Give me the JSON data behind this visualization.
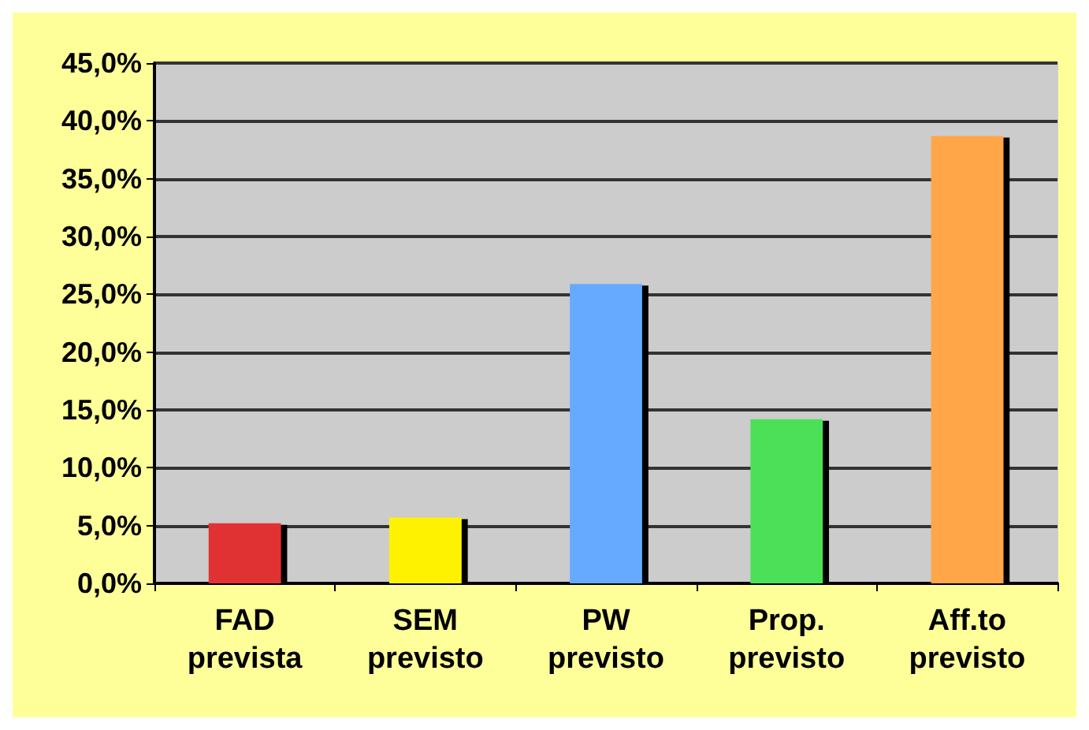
{
  "chart_data": {
    "type": "bar",
    "categories": [
      "FAD\nprevista",
      "SEM\nprevisto",
      "PW\nprevisto",
      "Prop.\nprevisto",
      "Aff.to\nprevisto"
    ],
    "values": [
      5.2,
      5.7,
      25.9,
      14.2,
      38.7
    ],
    "colors": [
      "#e03030",
      "#fff200",
      "#66aaff",
      "#4ce058",
      "#ffa64a"
    ],
    "ylim": [
      0,
      45
    ],
    "yticks": [
      {
        "value": 0,
        "label": "0,0%"
      },
      {
        "value": 5,
        "label": "5,0%"
      },
      {
        "value": 10,
        "label": "10,0%"
      },
      {
        "value": 15,
        "label": "15,0%"
      },
      {
        "value": 20,
        "label": "20,0%"
      },
      {
        "value": 25,
        "label": "25,0%"
      },
      {
        "value": 30,
        "label": "30,0%"
      },
      {
        "value": 35,
        "label": "35,0%"
      },
      {
        "value": 40,
        "label": "40,0%"
      },
      {
        "value": 45,
        "label": "45,0%"
      }
    ],
    "grid": "y"
  }
}
